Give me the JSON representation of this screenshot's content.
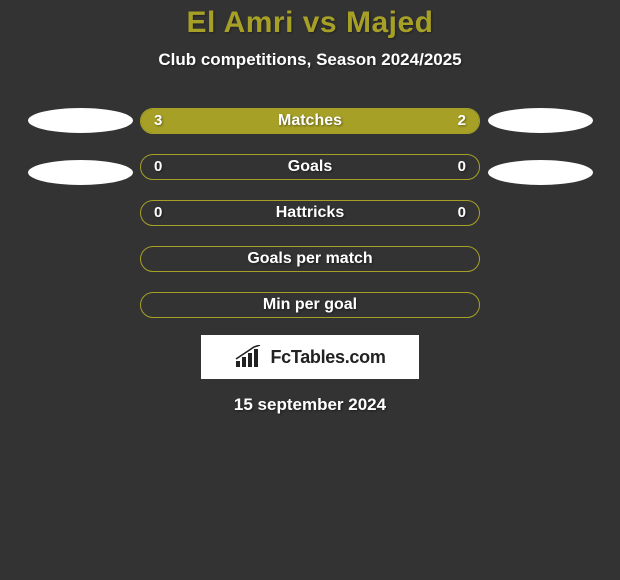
{
  "background_color": "#333333",
  "title": {
    "text": "El Amri vs Majed",
    "color": "#a7a027",
    "fontsize": 30
  },
  "subtitle": {
    "text": "Club competitions, Season 2024/2025",
    "color": "#ffffff",
    "fontsize": 17
  },
  "bar_style": {
    "border_color": "#a7a027",
    "border_width": 1.5,
    "border_radius": 14,
    "track_color": "transparent",
    "label_color": "#ffffff",
    "label_fontsize": 16,
    "value_color": "#ffffff",
    "value_fontsize": 15
  },
  "oval_style": {
    "color": "#ffffff",
    "width": 105,
    "height": 25
  },
  "rows": [
    {
      "label": "Matches",
      "left_value": "3",
      "right_value": "2",
      "left_fill_pct": 60,
      "right_fill_pct": 40,
      "fill_color": "#a7a027",
      "show_left_oval": true,
      "show_right_oval": true,
      "oval_offset_y": 0
    },
    {
      "label": "Goals",
      "left_value": "0",
      "right_value": "0",
      "left_fill_pct": 0,
      "right_fill_pct": 0,
      "fill_color": "#a7a027",
      "show_left_oval": true,
      "show_right_oval": true,
      "oval_offset_y": 6
    },
    {
      "label": "Hattricks",
      "left_value": "0",
      "right_value": "0",
      "left_fill_pct": 0,
      "right_fill_pct": 0,
      "fill_color": "#a7a027",
      "show_left_oval": false,
      "show_right_oval": false,
      "oval_offset_y": 0
    },
    {
      "label": "Goals per match",
      "left_value": "",
      "right_value": "",
      "left_fill_pct": 0,
      "right_fill_pct": 0,
      "fill_color": "#a7a027",
      "show_left_oval": false,
      "show_right_oval": false,
      "oval_offset_y": 0
    },
    {
      "label": "Min per goal",
      "left_value": "",
      "right_value": "",
      "left_fill_pct": 0,
      "right_fill_pct": 0,
      "fill_color": "#a7a027",
      "show_left_oval": false,
      "show_right_oval": false,
      "oval_offset_y": 0
    }
  ],
  "logo": {
    "background_color": "#ffffff",
    "text": "FcTables.com",
    "text_color": "#222222",
    "icon_color": "#222222",
    "fontsize": 18
  },
  "date": {
    "text": "15 september 2024",
    "color": "#ffffff",
    "fontsize": 17
  }
}
